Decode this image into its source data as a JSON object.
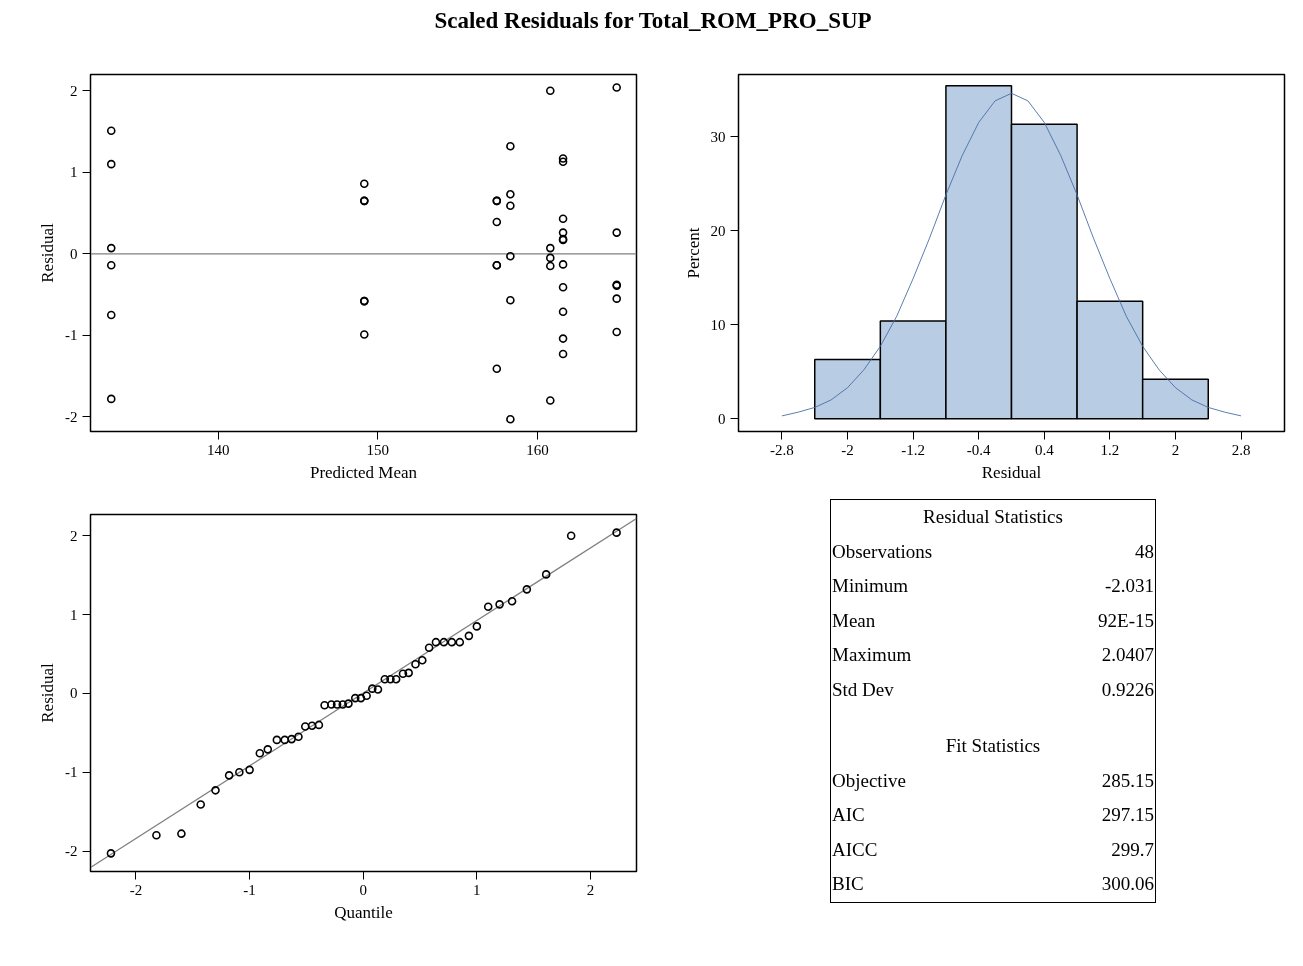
{
  "chart_data": [
    {
      "type": "scatter",
      "title": "Scaled Residuals for Total_ROM_PRO_SUP",
      "xlabel": "Predicted Mean",
      "ylabel": "Residual",
      "xlim": [
        132,
        166.2
      ],
      "ylim": [
        -2.18,
        2.2
      ],
      "xticks": [
        140,
        150,
        160
      ],
      "yticks": [
        -2,
        -1,
        0,
        1,
        2
      ],
      "series": [
        {
          "type": "scatter",
          "marker": "circle",
          "color": "#000000",
          "x": [
            133.3,
            133.3,
            133.3,
            133.3,
            133.3,
            133.3,
            149.15,
            149.15,
            149.15,
            149.15,
            149.15,
            149.15,
            157.45,
            157.45,
            157.45,
            157.45,
            157.45,
            157.45,
            158.3,
            158.3,
            158.3,
            158.3,
            158.3,
            158.3,
            160.8,
            160.8,
            160.8,
            160.8,
            160.8,
            161.6,
            161.6,
            161.6,
            161.6,
            161.6,
            161.6,
            161.6,
            161.6,
            161.6,
            161.6,
            161.6,
            164.96,
            164.96,
            164.96,
            164.96,
            164.96,
            164.96
          ],
          "values": [
            1.51,
            1.1,
            0.07,
            -0.14,
            -0.75,
            -1.78,
            0.86,
            0.65,
            0.65,
            -0.58,
            -0.58,
            -0.99,
            0.65,
            0.65,
            0.39,
            -0.14,
            -0.14,
            -1.41,
            1.32,
            0.73,
            0.59,
            -0.03,
            -0.57,
            -2.03,
            2.0,
            0.07,
            -0.05,
            -0.15,
            -1.8,
            1.17,
            1.13,
            0.43,
            0.26,
            0.18,
            0.17,
            -0.13,
            -0.41,
            -0.71,
            -1.04,
            -1.23,
            2.04,
            0.26,
            -0.38,
            -0.39,
            -0.55,
            -0.96
          ]
        }
      ],
      "ref_lines": [
        {
          "axis": "y",
          "value": 0,
          "color": "#808080"
        }
      ]
    },
    {
      "type": "histogram",
      "xlabel": "Residual",
      "ylabel": "Percent",
      "xlim": [
        -3.33,
        3.33
      ],
      "ylim": [
        -1.36,
        36.6
      ],
      "xticks": [
        -2.8,
        -2,
        -1.2,
        -0.4,
        0.4,
        1.2,
        2,
        2.8
      ],
      "yticks": [
        0,
        10,
        20,
        30
      ],
      "color": "#b8cce4",
      "bins": [
        -2.4,
        -1.6,
        -0.8,
        0,
        0.8,
        1.6,
        2.4
      ],
      "values": [
        6.3,
        10.4,
        35.4,
        31.3,
        12.5,
        4.2
      ],
      "series": [
        {
          "type": "line",
          "color": "#4a6fa5",
          "x": [
            -2.8,
            -2.6,
            -2.4,
            -2.2,
            -2.0,
            -1.8,
            -1.6,
            -1.4,
            -1.2,
            -1.0,
            -0.8,
            -0.6,
            -0.4,
            -0.2,
            0,
            0.2,
            0.4,
            0.6,
            0.8,
            1.0,
            1.2,
            1.4,
            1.6,
            1.8,
            2.0,
            2.2,
            2.4,
            2.6,
            2.8
          ],
          "values": [
            0.3,
            0.7,
            1.2,
            2.0,
            3.3,
            5.2,
            7.7,
            10.9,
            14.9,
            19.2,
            23.8,
            28.0,
            31.5,
            33.8,
            34.6,
            33.8,
            31.5,
            28.0,
            23.8,
            19.2,
            14.9,
            10.9,
            7.7,
            5.2,
            3.3,
            2.0,
            1.2,
            0.7,
            0.3
          ]
        }
      ]
    },
    {
      "type": "scatter",
      "xlabel": "Quantile",
      "ylabel": "Residual",
      "xlim": [
        -2.4,
        2.405
      ],
      "ylim": [
        -2.26,
        2.27
      ],
      "xticks": [
        -2,
        -1,
        0,
        1,
        2
      ],
      "yticks": [
        -2,
        -1,
        0,
        1,
        2
      ],
      "series": [
        {
          "type": "line",
          "marker": "none",
          "color": "#808080",
          "x": [
            -2.4,
            2.405
          ],
          "values": [
            -2.21,
            2.22
          ]
        },
        {
          "type": "scatter",
          "marker": "circle",
          "color": "#000000",
          "x": [
            -2.22,
            -1.82,
            -1.6,
            -1.43,
            -1.3,
            -1.18,
            -1.09,
            -1.0,
            -0.91,
            -0.84,
            -0.76,
            -0.69,
            -0.63,
            -0.57,
            -0.51,
            -0.45,
            -0.39,
            -0.34,
            -0.28,
            -0.23,
            -0.18,
            -0.13,
            -0.07,
            -0.02,
            0.03,
            0.08,
            0.13,
            0.19,
            0.24,
            0.29,
            0.35,
            0.4,
            0.46,
            0.52,
            0.58,
            0.64,
            0.71,
            0.78,
            0.85,
            0.93,
            1.0,
            1.1,
            1.2,
            1.31,
            1.44,
            1.61,
            1.83,
            2.23
          ],
          "values": [
            -2.03,
            -1.8,
            -1.78,
            -1.41,
            -1.23,
            -1.04,
            -1.0,
            -0.97,
            -0.76,
            -0.71,
            -0.59,
            -0.59,
            -0.58,
            -0.55,
            -0.42,
            -0.41,
            -0.4,
            -0.15,
            -0.14,
            -0.14,
            -0.14,
            -0.13,
            -0.06,
            -0.06,
            -0.03,
            0.06,
            0.05,
            0.18,
            0.18,
            0.18,
            0.25,
            0.26,
            0.37,
            0.42,
            0.58,
            0.65,
            0.65,
            0.65,
            0.65,
            0.73,
            0.85,
            1.1,
            1.13,
            1.17,
            1.32,
            1.51,
            2.0,
            2.04
          ]
        }
      ]
    },
    {
      "type": "other",
      "title": "Residual Statistics",
      "annotations": [
        "Observations",
        "48",
        "Minimum",
        "-2.031",
        "Mean",
        "92E-15",
        "Maximum",
        "2.0407",
        "Std Dev",
        "0.9226"
      ]
    },
    {
      "type": "other",
      "title": "Fit Statistics",
      "annotations": [
        "Objective",
        "285.15",
        "AIC",
        "297.15",
        "AICC",
        "299.7",
        "BIC",
        "300.06"
      ]
    }
  ]
}
